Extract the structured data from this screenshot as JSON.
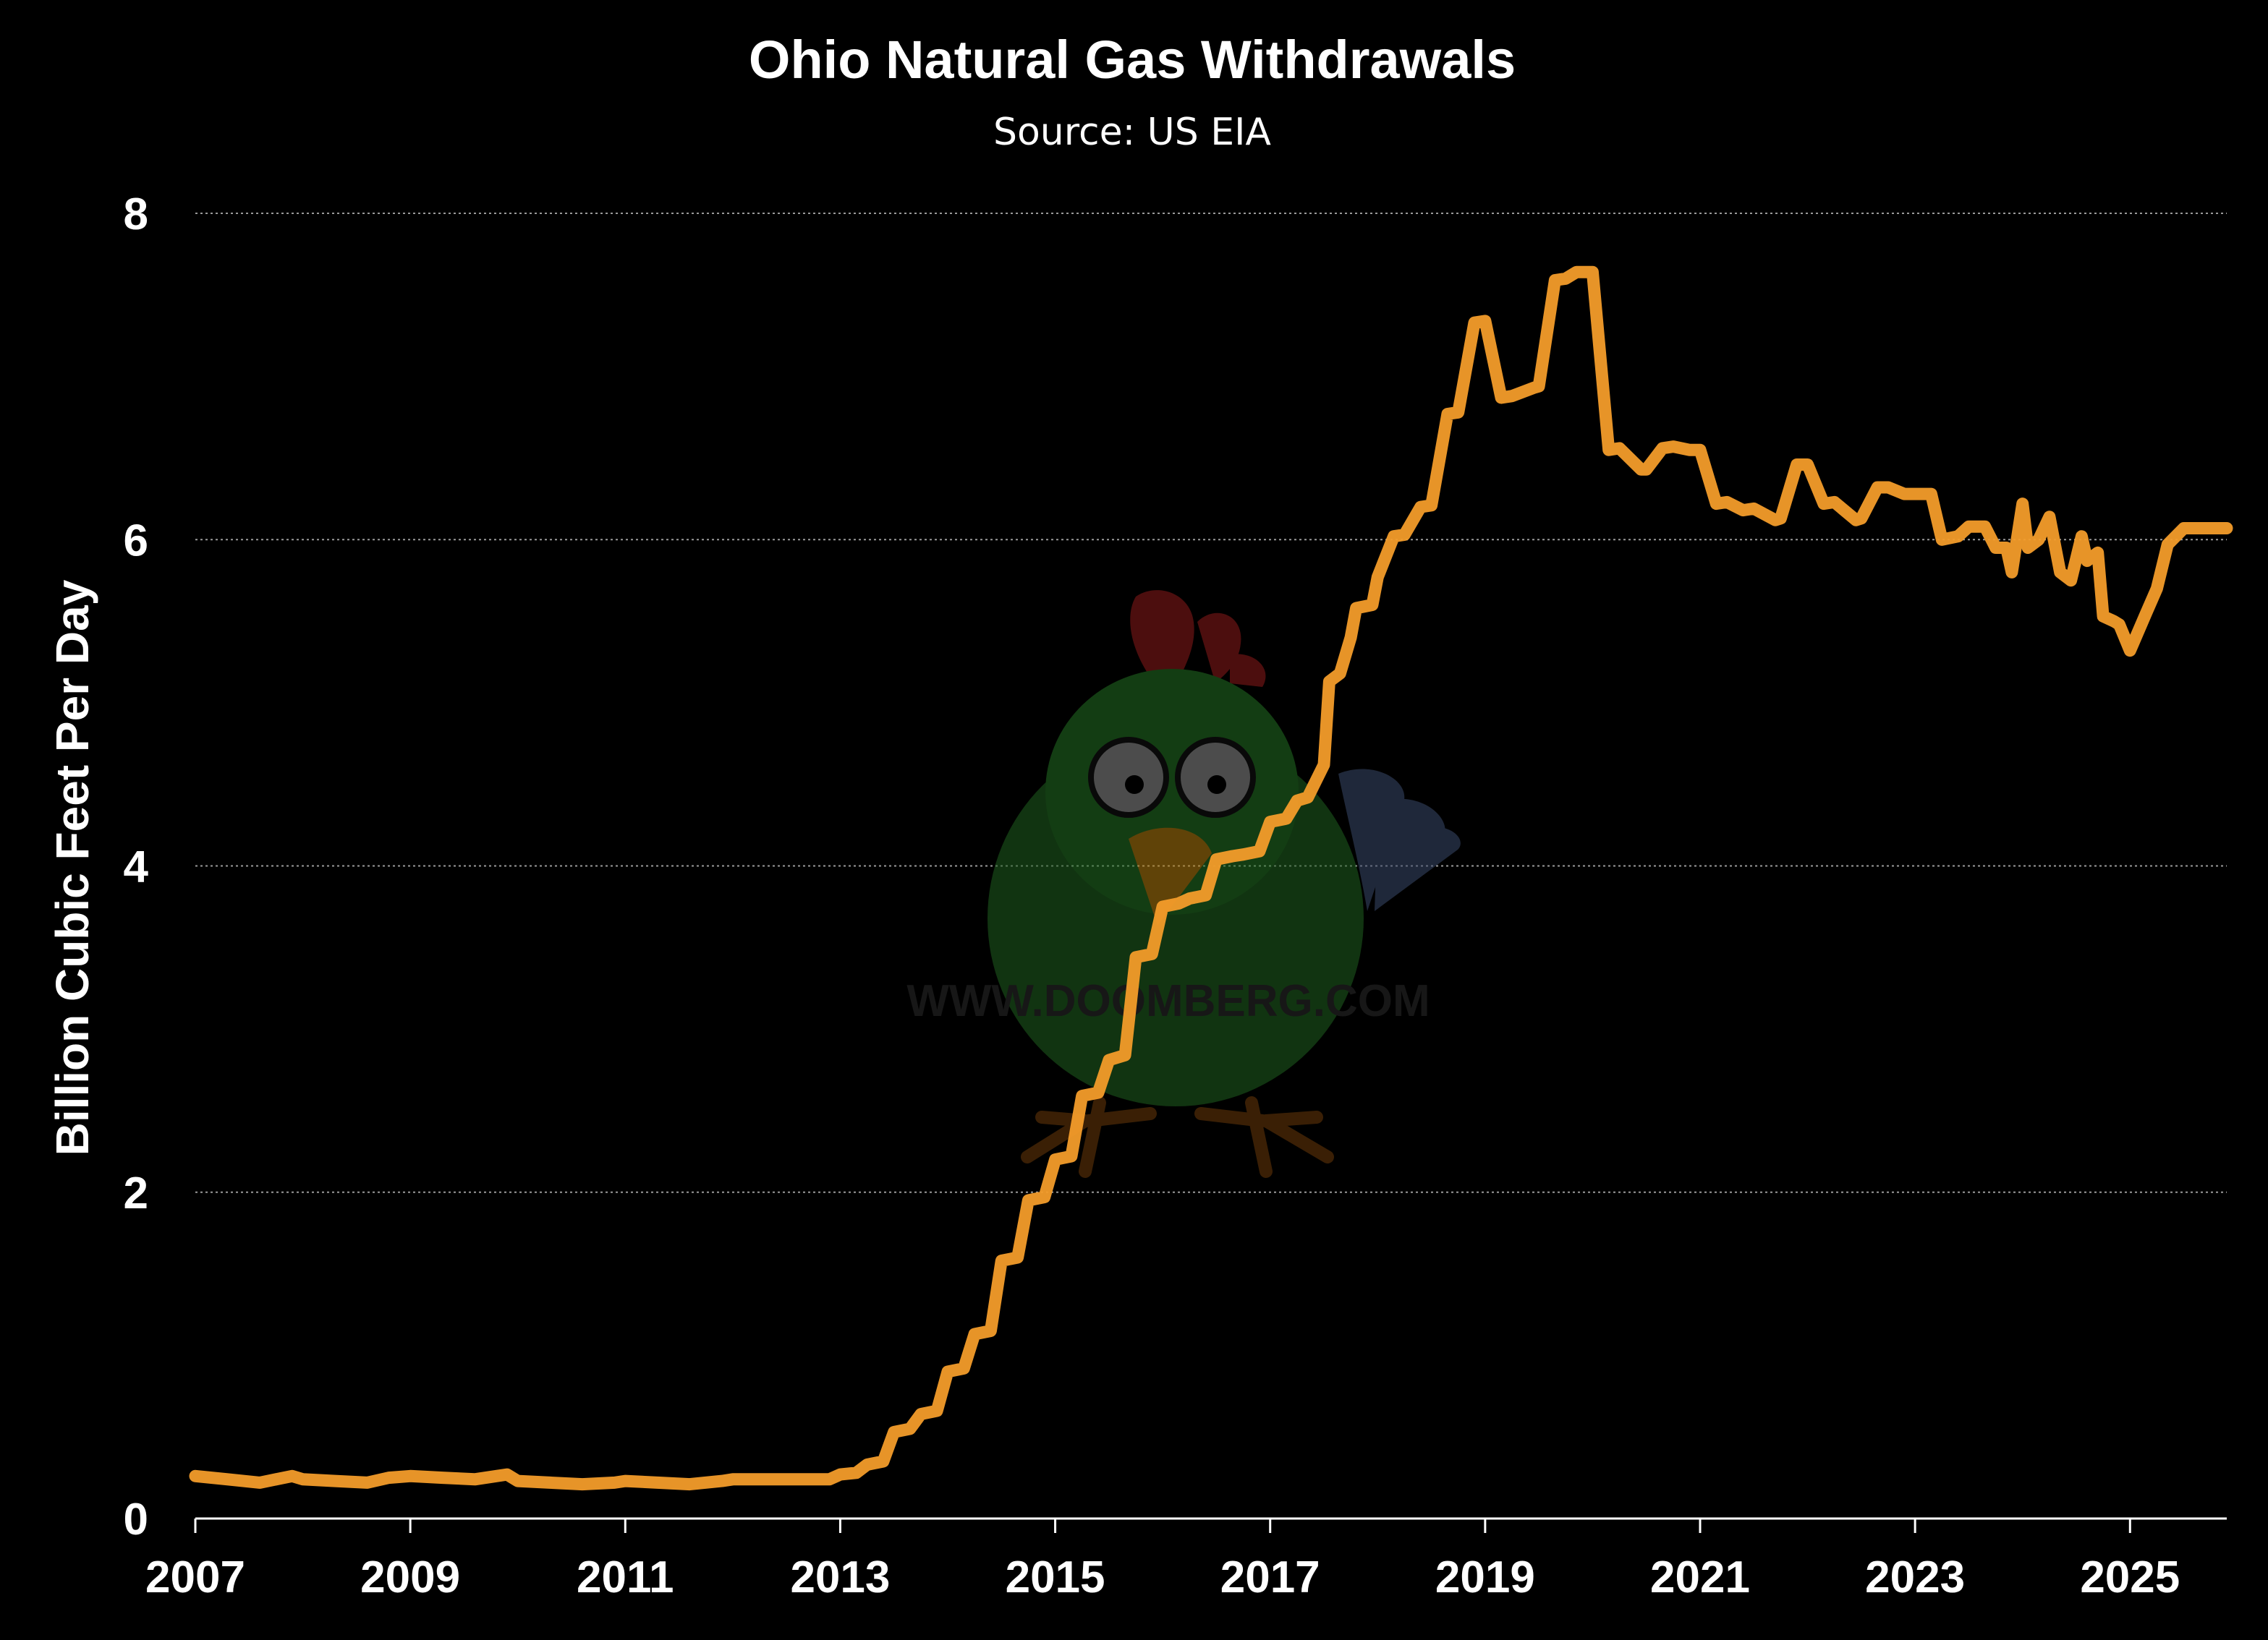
{
  "chart_data": {
    "type": "line",
    "title": "Ohio Natural Gas Withdrawals",
    "subtitle": "Source: US EIA",
    "xlabel": "",
    "ylabel": "Billion Cubic Feet Per Day",
    "xlim": [
      2007,
      2025.9
    ],
    "ylim": [
      0,
      8
    ],
    "grid": "horizontal dotted",
    "x_ticks": [
      "2007",
      "2009",
      "2011",
      "2013",
      "2015",
      "2017",
      "2019",
      "2021",
      "2023",
      "2025"
    ],
    "y_ticks": [
      "0",
      "2",
      "4",
      "6",
      "8"
    ],
    "series": [
      {
        "color": "#f39c2a",
        "x": [
          2007.0,
          2007.3,
          2007.6,
          2007.9,
          2008.0,
          2008.3,
          2008.6,
          2008.8,
          2009.0,
          2009.3,
          2009.6,
          2009.9,
          2010.0,
          2010.3,
          2010.6,
          2010.9,
          2011.0,
          2011.3,
          2011.6,
          2011.9,
          2012.0,
          2012.5,
          2012.9,
          2013.0,
          2013.15,
          2013.25,
          2013.4,
          2013.5,
          2013.65,
          2013.75,
          2013.9,
          2014.0,
          2014.15,
          2014.25,
          2014.4,
          2014.5,
          2014.65,
          2014.75,
          2014.9,
          2015.0,
          2015.15,
          2015.25,
          2015.4,
          2015.5,
          2015.65,
          2015.75,
          2015.9,
          2016.0,
          2016.15,
          2016.25,
          2016.4,
          2016.5,
          2016.65,
          2016.75,
          2016.9,
          2017.0,
          2017.15,
          2017.25,
          2017.35,
          2017.5,
          2017.55,
          2017.65,
          2017.75,
          2017.8,
          2017.95,
          2018.0,
          2018.15,
          2018.25,
          2018.4,
          2018.5,
          2018.65,
          2018.75,
          2018.9,
          2019.0,
          2019.15,
          2019.25,
          2019.45,
          2019.5,
          2019.65,
          2019.75,
          2019.85,
          2020.0,
          2020.15,
          2020.25,
          2020.45,
          2020.5,
          2020.65,
          2020.75,
          2020.9,
          2021.0,
          2021.15,
          2021.25,
          2021.4,
          2021.5,
          2021.7,
          2021.75,
          2021.9,
          2022.0,
          2022.15,
          2022.25,
          2022.45,
          2022.5,
          2022.65,
          2022.75,
          2022.9,
          2023.0,
          2023.15,
          2023.25,
          2023.4,
          2023.5,
          2023.65,
          2023.75,
          2023.85,
          2023.9,
          2024.0,
          2024.05,
          2024.15,
          2024.25,
          2024.35,
          2024.45,
          2024.55,
          2024.6,
          2024.7,
          2024.75,
          2024.85,
          2024.9,
          2025.0,
          2025.15,
          2025.25,
          2025.35,
          2025.5,
          2025.6,
          2025.75,
          2025.9
        ],
        "y": [
          0.26,
          0.24,
          0.22,
          0.26,
          0.24,
          0.23,
          0.22,
          0.25,
          0.26,
          0.25,
          0.24,
          0.27,
          0.23,
          0.22,
          0.21,
          0.22,
          0.23,
          0.22,
          0.21,
          0.23,
          0.24,
          0.24,
          0.24,
          0.27,
          0.28,
          0.33,
          0.35,
          0.53,
          0.55,
          0.64,
          0.66,
          0.9,
          0.92,
          1.13,
          1.15,
          1.58,
          1.6,
          1.95,
          1.97,
          2.2,
          2.22,
          2.59,
          2.61,
          2.81,
          2.84,
          3.44,
          3.46,
          3.75,
          3.77,
          3.8,
          3.82,
          4.04,
          4.06,
          4.07,
          4.09,
          4.27,
          4.29,
          4.4,
          4.42,
          4.62,
          5.13,
          5.18,
          5.4,
          5.58,
          5.6,
          5.77,
          6.02,
          6.03,
          6.2,
          6.21,
          6.77,
          6.78,
          7.33,
          7.34,
          6.87,
          6.88,
          6.93,
          6.94,
          7.59,
          7.6,
          7.64,
          7.64,
          6.55,
          6.56,
          6.43,
          6.43,
          6.56,
          6.57,
          6.55,
          6.55,
          6.22,
          6.23,
          6.18,
          6.19,
          6.12,
          6.13,
          6.46,
          6.46,
          6.22,
          6.23,
          6.12,
          6.13,
          6.32,
          6.32,
          6.28,
          6.28,
          6.28,
          6.0,
          6.02,
          6.08,
          6.08,
          5.95,
          5.95,
          5.8,
          6.22,
          5.95,
          6.0,
          6.14,
          5.8,
          5.75,
          6.02,
          5.87,
          5.92,
          5.53,
          5.5,
          5.48,
          5.32,
          5.55,
          5.7,
          5.97,
          6.07,
          6.07,
          6.07,
          6.07
        ]
      }
    ],
    "watermark": "WWW.DOOMBERG.COM"
  }
}
